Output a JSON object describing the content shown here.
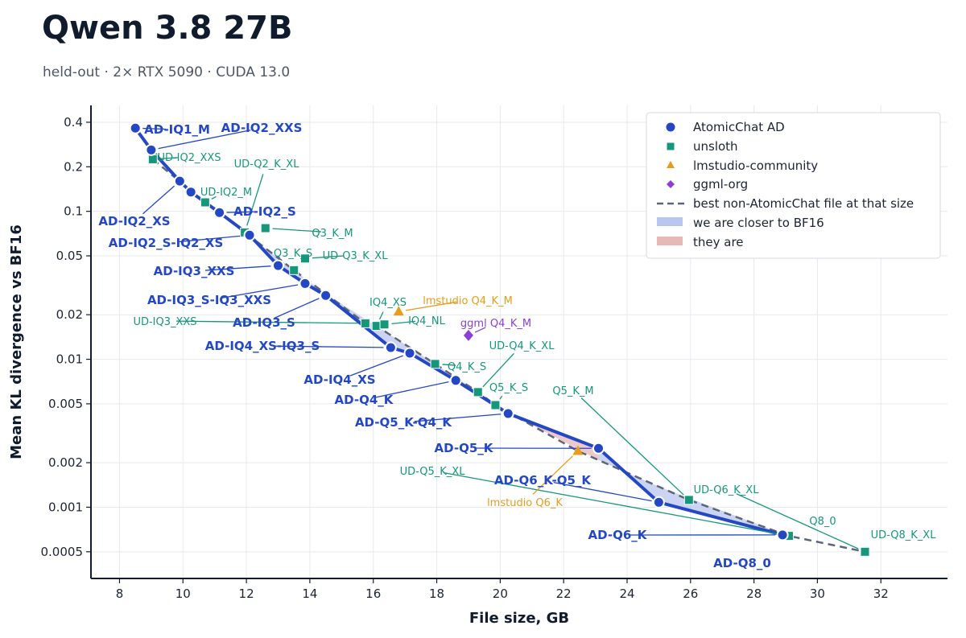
{
  "title": "Qwen 3.8 27B",
  "subtitle": "held-out · 2× RTX 5090 · CUDA 13.0",
  "colors": {
    "atomic": "#2347c5",
    "unsloth": "#15977b",
    "lmstudio": "#e89c1a",
    "ggml": "#8c3fd6",
    "frontier": "#5c6678",
    "closer_fill": "#b9c6ee",
    "they_fill": "#e7b8b8",
    "grid": "#e6e9ee",
    "axis": "#101b2d"
  },
  "chart_data": {
    "type": "scatter",
    "xlabel": "File size, GB",
    "ylabel": "Mean KL divergence vs BF16",
    "xlim": [
      7.1,
      34.1
    ],
    "ylim": [
      0.00033,
      0.52
    ],
    "y_scale": "log",
    "grid": true,
    "legend_position": "top-right",
    "x_ticks": [
      "8",
      "10",
      "12",
      "14",
      "16",
      "18",
      "20",
      "22",
      "24",
      "26",
      "28",
      "30",
      "32"
    ],
    "y_ticks": [
      "0.4",
      "0.2",
      "0.1",
      "0.05",
      "0.02",
      "0.01",
      "0.005",
      "0.002",
      "0.001",
      "0.0005"
    ],
    "legend": [
      "AtomicChat AD",
      "unsloth",
      "lmstudio-community",
      "ggml-org",
      "best non-AtomicChat file at that size",
      "we are closer to BF16",
      "they are"
    ],
    "series": [
      {
        "name": "AtomicChat AD",
        "points": [
          {
            "x": 8.5,
            "y": 0.365,
            "label": "AD-IQ1_M"
          },
          {
            "x": 9.0,
            "y": 0.26,
            "label": "AD-IQ2_XXS"
          },
          {
            "x": 9.9,
            "y": 0.16,
            "label": "AD-IQ2_XS"
          },
          {
            "x": 10.25,
            "y": 0.135,
            "label": ""
          },
          {
            "x": 11.15,
            "y": 0.098,
            "label": "AD-IQ2_S"
          },
          {
            "x": 12.1,
            "y": 0.069,
            "label": "AD-IQ2_S-IQ2_XS"
          },
          {
            "x": 13.0,
            "y": 0.043,
            "label": "AD-IQ3_XXS"
          },
          {
            "x": 13.85,
            "y": 0.0325,
            "label": "AD-IQ3_S-IQ3_XXS"
          },
          {
            "x": 14.5,
            "y": 0.027,
            "label": "AD-IQ3_S"
          },
          {
            "x": 16.55,
            "y": 0.012,
            "label": "AD-IQ4_XS-IQ3_S"
          },
          {
            "x": 17.15,
            "y": 0.011,
            "label": "AD-IQ4_XS"
          },
          {
            "x": 18.6,
            "y": 0.0072,
            "label": "AD-Q4_K"
          },
          {
            "x": 20.25,
            "y": 0.0043,
            "label": "AD-Q5_K-Q4_K"
          },
          {
            "x": 23.1,
            "y": 0.0025,
            "label": "AD-Q5_K"
          },
          {
            "x": 25.0,
            "y": 0.00108,
            "label": "AD-Q6_K-Q5_K"
          },
          {
            "x": 28.9,
            "y": 0.00065,
            "label": "AD-Q6_K"
          }
        ]
      },
      {
        "name": "unsloth",
        "points": [
          {
            "x": 9.05,
            "y": 0.225,
            "label": "UD-IQ2_XXS"
          },
          {
            "x": 10.7,
            "y": 0.115,
            "label": "UD-IQ2_M"
          },
          {
            "x": 11.95,
            "y": 0.072,
            "label": "UD-Q2_K_XL"
          },
          {
            "x": 12.6,
            "y": 0.077,
            "label": "Q3_K_M"
          },
          {
            "x": 13.5,
            "y": 0.04,
            "label": "Q3_K_S"
          },
          {
            "x": 13.85,
            "y": 0.048,
            "label": "UD-Q3_K_XL"
          },
          {
            "x": 15.75,
            "y": 0.0175,
            "label": "UD-IQ3_XXS"
          },
          {
            "x": 16.1,
            "y": 0.0168,
            "label": "IQ4_XS"
          },
          {
            "x": 16.35,
            "y": 0.0172,
            "label": "IQ4_NL"
          },
          {
            "x": 17.95,
            "y": 0.0093,
            "label": "Q4_K_S"
          },
          {
            "x": 19.3,
            "y": 0.006,
            "label": "UD-Q4_K_XL"
          },
          {
            "x": 19.85,
            "y": 0.0049,
            "label": "Q5_K_S"
          },
          {
            "x": 25.95,
            "y": 0.00112,
            "label": "Q5_K_M"
          },
          {
            "x": 29.1,
            "y": 0.00064,
            "label": "UD-Q5_K_XL"
          },
          {
            "x": 31.5,
            "y": 0.0005,
            "label": "UD-Q6_K_XL"
          }
        ]
      },
      {
        "name": "lmstudio-community",
        "points": [
          {
            "x": 16.8,
            "y": 0.021,
            "label": "lmstudio Q4_K_M"
          },
          {
            "x": 22.45,
            "y": 0.0024,
            "label": "lmstudio Q6_K"
          }
        ]
      },
      {
        "name": "ggml-org",
        "points": [
          {
            "x": 19.0,
            "y": 0.0145,
            "label": "ggml Q4_K_M"
          }
        ]
      }
    ],
    "labels_extra": [
      "Q8_0",
      "UD-Q8_K_XL",
      "AD-Q8_0"
    ]
  }
}
